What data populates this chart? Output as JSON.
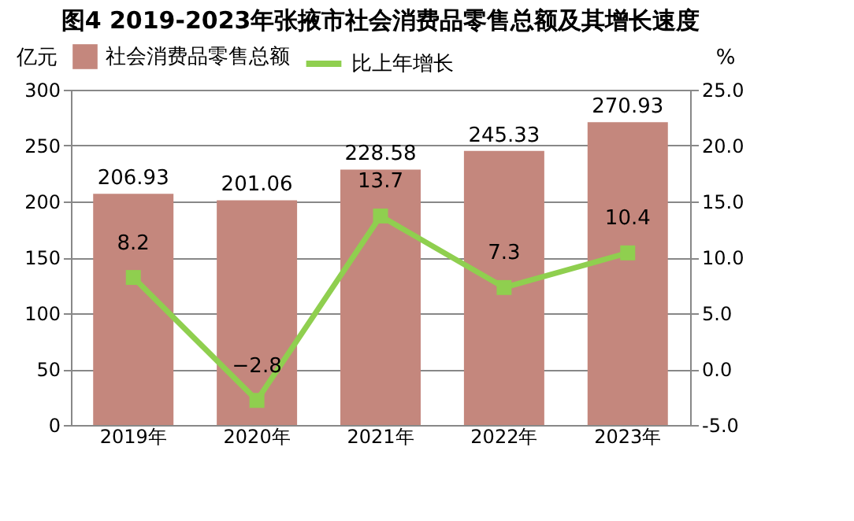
{
  "chart_data": {
    "type": "bar",
    "title": "图4  2019-2023年张掖市社会消费品零售总额及其增长速度",
    "categories": [
      "2019年",
      "2020年",
      "2021年",
      "2022年",
      "2023年"
    ],
    "series": [
      {
        "name": "社会消费品零售总额",
        "color": "#c4877d",
        "values": [
          206.93,
          201.06,
          228.58,
          245.33,
          270.93
        ]
      },
      {
        "name": "比上年增长",
        "type": "line",
        "axis": "y2",
        "color": "#8fcf4f",
        "marker": "square",
        "values": [
          8.2,
          -2.8,
          13.7,
          7.3,
          10.4
        ]
      }
    ],
    "ylabel": "亿元",
    "y2label": "%",
    "ylim": [
      0,
      300
    ],
    "yticks": [
      0,
      50,
      100,
      150,
      200,
      250,
      300
    ],
    "y2lim": [
      -5,
      25
    ],
    "y2ticks": [
      {
        "value": -5,
        "label": "-5.0"
      },
      {
        "value": 0,
        "label": "0.0"
      },
      {
        "value": 5,
        "label": "5.0"
      },
      {
        "value": 10,
        "label": "10.0"
      },
      {
        "value": 15,
        "label": "15.0"
      },
      {
        "value": 20,
        "label": "20.0"
      },
      {
        "value": 25,
        "label": "25.0"
      }
    ],
    "grid": "y",
    "legend": "top",
    "data_labels": true
  }
}
